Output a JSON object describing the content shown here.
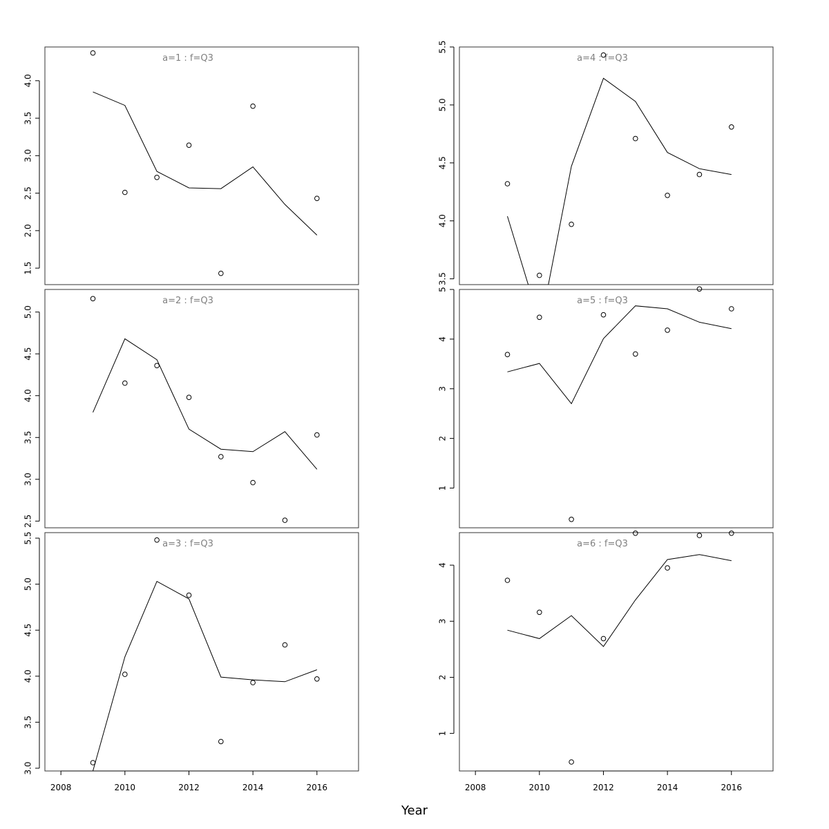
{
  "chart_data": {
    "type": "scatter",
    "xlabel": "Year",
    "xlim": [
      2007.5,
      2017.3
    ],
    "x_ticks": [
      2008,
      2010,
      2012,
      2014,
      2016
    ],
    "x_tick_labels": [
      "2008",
      "2010",
      "2012",
      "2014",
      "2016"
    ],
    "panels": [
      {
        "title": "a=1 : f=Q3",
        "ylim": [
          1.28,
          4.45
        ],
        "y_ticks": [
          1.5,
          2.0,
          2.5,
          3.0,
          3.5,
          4.0
        ],
        "y_tick_labels": [
          "1.5",
          "2.0",
          "2.5",
          "3.0",
          "3.5",
          "4.0"
        ],
        "points": [
          [
            2009,
            4.37
          ],
          [
            2010,
            2.51
          ],
          [
            2011,
            2.71
          ],
          [
            2012,
            3.14
          ],
          [
            2013,
            1.43
          ],
          [
            2014,
            3.66
          ],
          [
            2016,
            2.43
          ]
        ],
        "line": [
          [
            2009,
            3.85
          ],
          [
            2010,
            3.67
          ],
          [
            2011,
            2.79
          ],
          [
            2012,
            2.57
          ],
          [
            2013,
            2.56
          ],
          [
            2014,
            2.85
          ],
          [
            2015,
            2.35
          ],
          [
            2016,
            1.94
          ]
        ]
      },
      {
        "title": "a=2 : f=Q3",
        "ylim": [
          2.42,
          5.27
        ],
        "y_ticks": [
          2.5,
          3.0,
          3.5,
          4.0,
          4.5,
          5.0
        ],
        "y_tick_labels": [
          "2.5",
          "3.0",
          "3.5",
          "4.0",
          "4.5",
          "5.0"
        ],
        "points": [
          [
            2009,
            5.16
          ],
          [
            2010,
            4.15
          ],
          [
            2011,
            4.36
          ],
          [
            2012,
            3.98
          ],
          [
            2013,
            3.27
          ],
          [
            2014,
            2.96
          ],
          [
            2015,
            2.51
          ],
          [
            2016,
            3.53
          ]
        ],
        "line": [
          [
            2009,
            3.8
          ],
          [
            2010,
            4.68
          ],
          [
            2011,
            4.43
          ],
          [
            2012,
            3.6
          ],
          [
            2013,
            3.36
          ],
          [
            2014,
            3.33
          ],
          [
            2015,
            3.57
          ],
          [
            2016,
            3.12
          ]
        ]
      },
      {
        "title": "a=3 : f=Q3",
        "ylim": [
          2.97,
          5.56
        ],
        "y_ticks": [
          3.0,
          3.5,
          4.0,
          4.5,
          5.0,
          5.5
        ],
        "y_tick_labels": [
          "3.0",
          "3.5",
          "4.0",
          "4.5",
          "5.0",
          "5.5"
        ],
        "points": [
          [
            2009,
            3.06
          ],
          [
            2010,
            4.02
          ],
          [
            2011,
            5.48
          ],
          [
            2012,
            4.88
          ],
          [
            2013,
            3.29
          ],
          [
            2014,
            3.93
          ],
          [
            2015,
            4.34
          ],
          [
            2016,
            3.97
          ]
        ],
        "line": [
          [
            2009,
            2.97
          ],
          [
            2010,
            4.21
          ],
          [
            2011,
            5.03
          ],
          [
            2012,
            4.84
          ],
          [
            2013,
            3.99
          ],
          [
            2014,
            3.96
          ],
          [
            2015,
            3.94
          ],
          [
            2016,
            4.07
          ]
        ]
      },
      {
        "title": "a=4 : f=Q3",
        "ylim": [
          3.45,
          5.5
        ],
        "y_ticks": [
          3.5,
          4.0,
          4.5,
          5.0,
          5.5
        ],
        "y_tick_labels": [
          "3.5",
          "4.0",
          "4.5",
          "5.0",
          "5.5"
        ],
        "points": [
          [
            2009,
            4.32
          ],
          [
            2010,
            3.53
          ],
          [
            2011,
            3.97
          ],
          [
            2012,
            5.43
          ],
          [
            2013,
            4.71
          ],
          [
            2014,
            4.22
          ],
          [
            2015,
            4.4
          ],
          [
            2016,
            4.81
          ]
        ],
        "line": [
          [
            2009,
            4.04
          ],
          [
            2009.65,
            3.45
          ],
          [
            2010.28,
            3.45
          ],
          [
            2011,
            4.47
          ],
          [
            2012,
            5.23
          ],
          [
            2013,
            5.03
          ],
          [
            2014,
            4.59
          ],
          [
            2015,
            4.45
          ],
          [
            2016,
            4.4
          ]
        ]
      },
      {
        "title": "a=5 : f=Q3",
        "ylim": [
          0.2,
          5.0
        ],
        "y_ticks": [
          1,
          2,
          3,
          4,
          5
        ],
        "y_tick_labels": [
          "1",
          "2",
          "3",
          "4",
          "5"
        ],
        "points": [
          [
            2009,
            3.69
          ],
          [
            2010,
            4.44
          ],
          [
            2011,
            0.37
          ],
          [
            2012,
            4.49
          ],
          [
            2013,
            3.7
          ],
          [
            2014,
            4.18
          ],
          [
            2015,
            5.01
          ],
          [
            2016,
            4.61
          ]
        ],
        "line": [
          [
            2009,
            3.34
          ],
          [
            2010,
            3.51
          ],
          [
            2011,
            2.7
          ],
          [
            2012,
            4.01
          ],
          [
            2013,
            4.67
          ],
          [
            2014,
            4.61
          ],
          [
            2015,
            4.34
          ],
          [
            2016,
            4.21
          ]
        ]
      },
      {
        "title": "a=6 : f=Q3",
        "ylim": [
          0.33,
          4.58
        ],
        "y_ticks": [
          1,
          2,
          3,
          4
        ],
        "y_tick_labels": [
          "1",
          "2",
          "3",
          "4"
        ],
        "points": [
          [
            2009,
            3.73
          ],
          [
            2010,
            3.16
          ],
          [
            2011,
            0.49
          ],
          [
            2012,
            2.69
          ],
          [
            2013,
            4.57
          ],
          [
            2014,
            3.95
          ],
          [
            2015,
            4.53
          ],
          [
            2016,
            4.57
          ]
        ],
        "line": [
          [
            2009,
            2.84
          ],
          [
            2010,
            2.69
          ],
          [
            2011,
            3.1
          ],
          [
            2012,
            2.55
          ],
          [
            2013,
            3.38
          ],
          [
            2014,
            4.1
          ],
          [
            2015,
            4.19
          ],
          [
            2016,
            4.08
          ]
        ]
      }
    ]
  }
}
